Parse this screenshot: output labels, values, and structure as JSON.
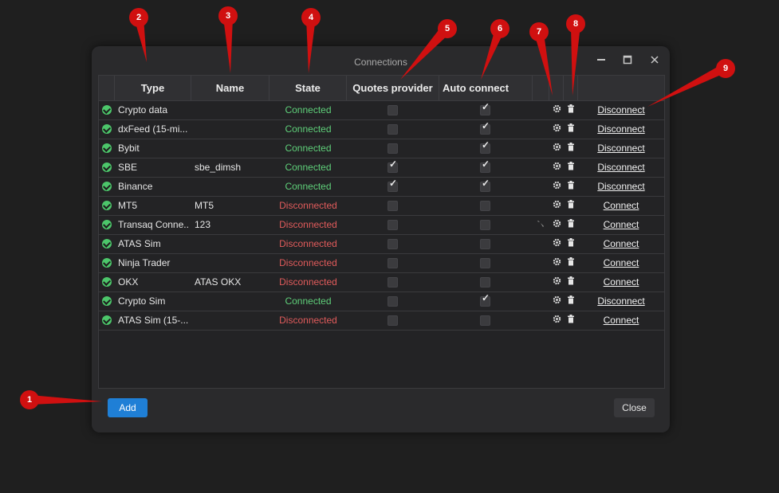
{
  "window": {
    "title": "Connections",
    "minimize_icon": "minimize-icon",
    "maximize_icon": "maximize-icon",
    "close_icon": "close-icon"
  },
  "table": {
    "headers": [
      "Type",
      "Name",
      "State",
      "Quotes provider",
      "Auto connect"
    ],
    "rows": [
      {
        "type": "Crypto data",
        "name": "",
        "state": "Connected",
        "quotes": false,
        "auto": true,
        "action": "Disconnect",
        "tool": false
      },
      {
        "type": "dxFeed (15-mi...",
        "name": "",
        "state": "Connected",
        "quotes": false,
        "auto": true,
        "action": "Disconnect",
        "tool": false
      },
      {
        "type": "Bybit",
        "name": "",
        "state": "Connected",
        "quotes": false,
        "auto": true,
        "action": "Disconnect",
        "tool": false
      },
      {
        "type": "SBE",
        "name": "sbe_dimsh",
        "state": "Connected",
        "quotes": true,
        "auto": true,
        "action": "Disconnect",
        "tool": false
      },
      {
        "type": "Binance",
        "name": "",
        "state": "Connected",
        "quotes": true,
        "auto": true,
        "action": "Disconnect",
        "tool": false
      },
      {
        "type": "MT5",
        "name": "MT5",
        "state": "Disconnected",
        "quotes": false,
        "auto": false,
        "action": "Connect",
        "tool": false
      },
      {
        "type": "Transaq Conne...",
        "name": "123",
        "state": "Disconnected",
        "quotes": false,
        "auto": false,
        "action": "Connect",
        "tool": true
      },
      {
        "type": "ATAS Sim",
        "name": "",
        "state": "Disconnected",
        "quotes": false,
        "auto": false,
        "action": "Connect",
        "tool": false
      },
      {
        "type": "Ninja Trader",
        "name": "",
        "state": "Disconnected",
        "quotes": false,
        "auto": false,
        "action": "Connect",
        "tool": false
      },
      {
        "type": "OKX",
        "name": "ATAS OKX",
        "state": "Disconnected",
        "quotes": false,
        "auto": false,
        "action": "Connect",
        "tool": false
      },
      {
        "type": "Crypto Sim",
        "name": "",
        "state": "Connected",
        "quotes": false,
        "auto": true,
        "action": "Disconnect",
        "tool": false
      },
      {
        "type": "ATAS Sim (15-...",
        "name": "",
        "state": "Disconnected",
        "quotes": false,
        "auto": false,
        "action": "Connect",
        "tool": false
      }
    ]
  },
  "footer": {
    "add_label": "Add",
    "close_label": "Close"
  },
  "markers": [
    "1",
    "2",
    "3",
    "4",
    "5",
    "6",
    "7",
    "8",
    "9"
  ],
  "colors": {
    "connected": "#5fd07a",
    "disconnected": "#e05b5b",
    "accent": "#1f7fd6",
    "marker": "#d01010"
  }
}
